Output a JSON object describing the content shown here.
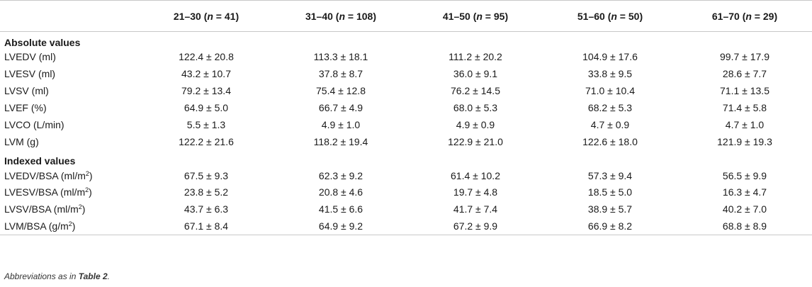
{
  "header": {
    "blank": "",
    "groups": [
      {
        "range": "21–30 (",
        "n": "n",
        "rest": " = 41)"
      },
      {
        "range": "31–40 (",
        "n": "n",
        "rest": " = 108)"
      },
      {
        "range": "41–50 (",
        "n": "n",
        "rest": " = 95)"
      },
      {
        "range": "51–60 (",
        "n": "n",
        "rest": " = 50)"
      },
      {
        "range": "61–70 (",
        "n": "n",
        "rest": " = 29)"
      }
    ]
  },
  "sections": [
    {
      "title": "Absolute values",
      "rows": [
        {
          "label": "LVEDV (ml)",
          "sup": "",
          "label_end": "",
          "values": [
            "122.4 ± 20.8",
            "113.3 ± 18.1",
            "111.2 ± 20.2",
            "104.9 ± 17.6",
            "99.7 ± 17.9"
          ]
        },
        {
          "label": "LVESV (ml)",
          "sup": "",
          "label_end": "",
          "values": [
            "43.2 ± 10.7",
            "37.8 ± 8.7",
            "36.0 ± 9.1",
            "33.8 ± 9.5",
            "28.6 ± 7.7"
          ]
        },
        {
          "label": "LVSV (ml)",
          "sup": "",
          "label_end": "",
          "values": [
            "79.2 ± 13.4",
            "75.4 ± 12.8",
            "76.2 ± 14.5",
            "71.0 ± 10.4",
            "71.1 ± 13.5"
          ]
        },
        {
          "label": "LVEF (%)",
          "sup": "",
          "label_end": "",
          "values": [
            "64.9 ± 5.0",
            "66.7 ± 4.9",
            "68.0 ± 5.3",
            "68.2 ± 5.3",
            "71.4 ± 5.8"
          ]
        },
        {
          "label": "LVCO (L/min)",
          "sup": "",
          "label_end": "",
          "values": [
            "5.5 ± 1.3",
            "4.9 ± 1.0",
            "4.9 ± 0.9",
            "4.7 ± 0.9",
            "4.7 ± 1.0"
          ]
        },
        {
          "label": "LVM (g)",
          "sup": "",
          "label_end": "",
          "values": [
            "122.2 ± 21.6",
            "118.2 ± 19.4",
            "122.9 ± 21.0",
            "122.6 ± 18.0",
            "121.9 ± 19.3"
          ]
        }
      ]
    },
    {
      "title": "Indexed values",
      "rows": [
        {
          "label": "LVEDV/BSA (ml/m",
          "sup": "2",
          "label_end": ")",
          "values": [
            "67.5 ± 9.3",
            "62.3 ± 9.2",
            "61.4 ± 10.2",
            "57.3 ± 9.4",
            "56.5 ± 9.9"
          ]
        },
        {
          "label": "LVESV/BSA (ml/m",
          "sup": "2",
          "label_end": ")",
          "values": [
            "23.8 ± 5.2",
            "20.8 ± 4.6",
            "19.7 ± 4.8",
            "18.5 ± 5.0",
            "16.3 ± 4.7"
          ]
        },
        {
          "label": "LVSV/BSA (ml/m",
          "sup": "2",
          "label_end": ")",
          "values": [
            "43.7 ± 6.3",
            "41.5 ± 6.6",
            "41.7 ± 7.4",
            "38.9 ± 5.7",
            "40.2 ± 7.0"
          ]
        },
        {
          "label": "LVM/BSA (g/m",
          "sup": "2",
          "label_end": ")",
          "values": [
            "67.1 ± 8.4",
            "64.9 ± 9.2",
            "67.2 ± 9.9",
            "66.9 ± 8.2",
            "68.8 ± 8.9"
          ]
        }
      ]
    }
  ],
  "footnote": {
    "prefix": "Abbreviations as in ",
    "ref": "Table 2",
    "suffix": "."
  }
}
